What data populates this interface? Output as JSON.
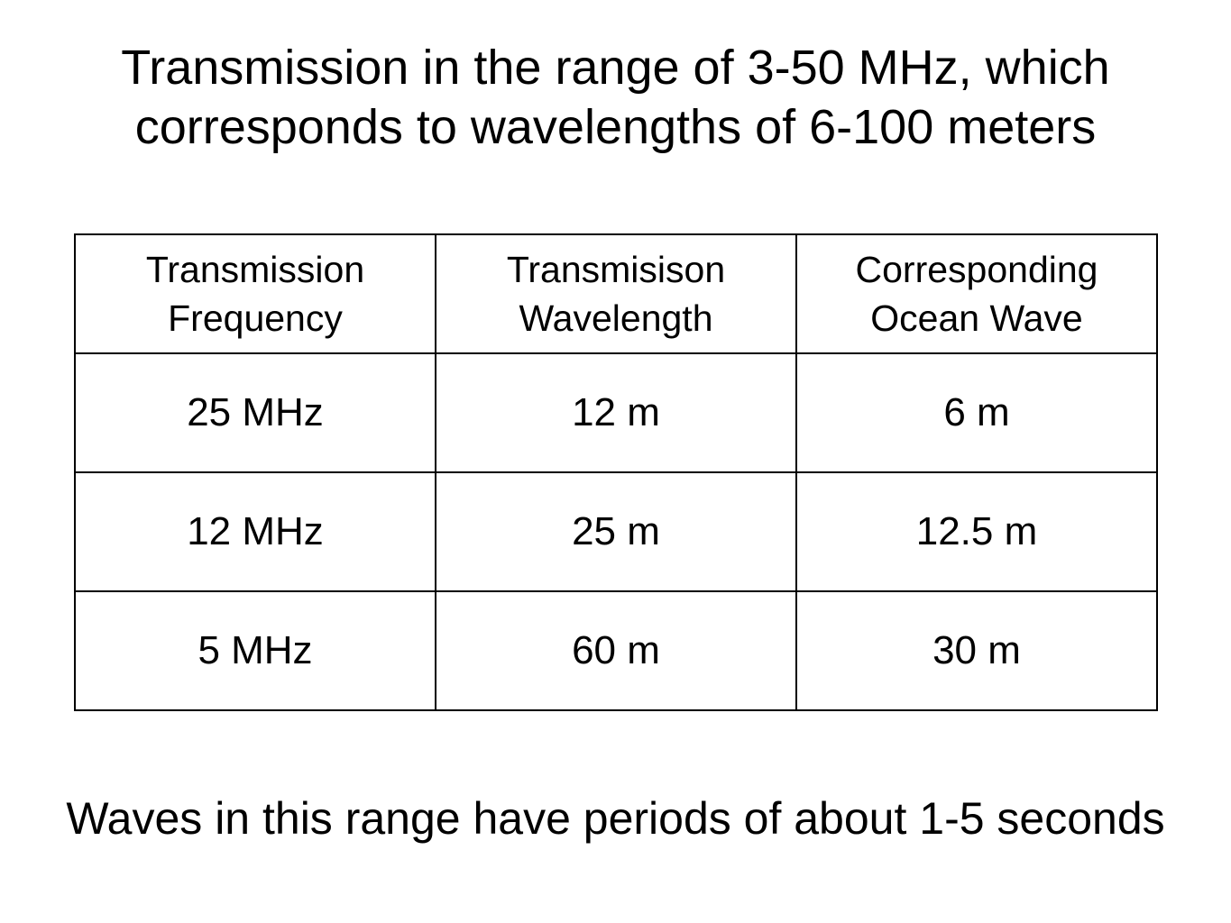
{
  "title": {
    "line1": "Transmission in the range of 3-50 MHz, which",
    "line2": "corresponds to wavelengths of 6-100 meters"
  },
  "table": {
    "headers": [
      {
        "line1": "Transmission",
        "line2": "Frequency"
      },
      {
        "line1": "Transmisison",
        "line2": "Wavelength"
      },
      {
        "line1": "Corresponding",
        "line2": "Ocean Wave"
      }
    ],
    "rows": [
      [
        "25 MHz",
        "12 m",
        "6 m"
      ],
      [
        "12 MHz",
        "25 m",
        "12.5 m"
      ],
      [
        "5 MHz",
        "60 m",
        "30 m"
      ]
    ]
  },
  "footer": "Waves in this range have periods of about 1-5 seconds"
}
